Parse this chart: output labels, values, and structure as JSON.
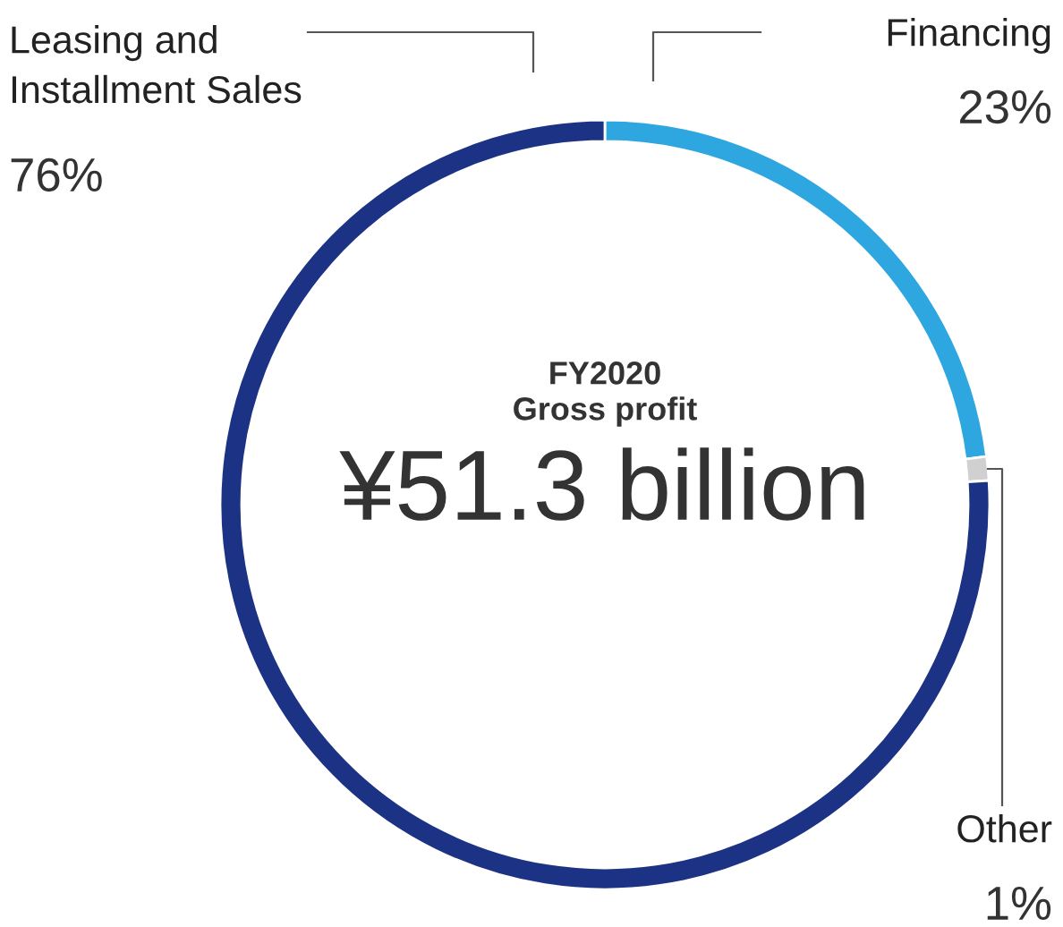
{
  "chart_data": {
    "type": "donut",
    "categories": [
      "Financing",
      "Other",
      "Leasing and\nInstallment Sales"
    ],
    "values": [
      23,
      1,
      76
    ],
    "colors": [
      "#2ea7e0",
      "#d0d0d0",
      "#1c3284"
    ],
    "value_labels": [
      "23%",
      "1%",
      "76%"
    ],
    "annotations": [
      "FY2020",
      "Gross profit",
      "¥51.3 billion"
    ],
    "legend": false
  }
}
